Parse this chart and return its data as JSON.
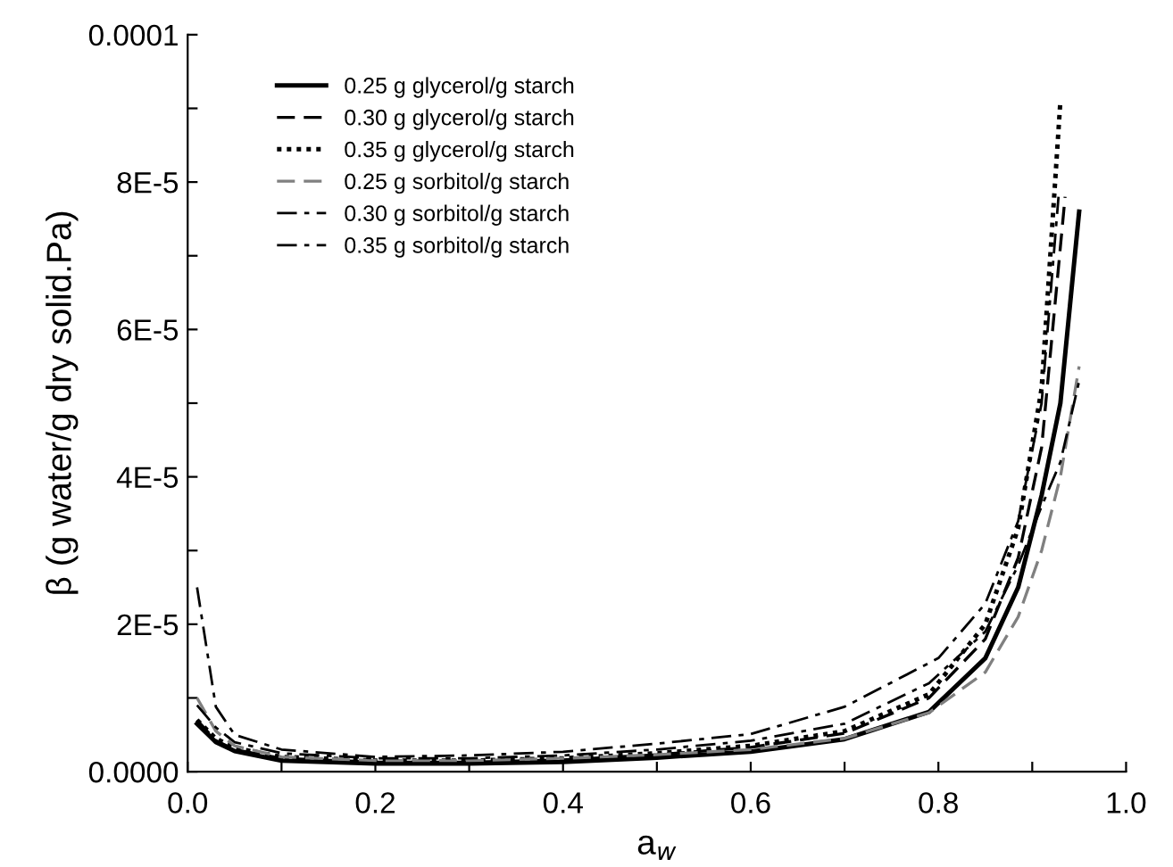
{
  "chart_data": {
    "type": "line",
    "xlabel": "a$_{w}$",
    "ylabel": "β (g water/g dry solid.Pa)",
    "xlim": [
      0,
      1
    ],
    "ylim": [
      0,
      0.0001
    ],
    "xticks": [
      {
        "value": 0,
        "label": "0.0"
      },
      {
        "value": 0.1,
        "label": null
      },
      {
        "value": 0.2,
        "label": "0.2"
      },
      {
        "value": 0.3,
        "label": null
      },
      {
        "value": 0.4,
        "label": "0.4"
      },
      {
        "value": 0.5,
        "label": null
      },
      {
        "value": 0.6,
        "label": "0.6"
      },
      {
        "value": 0.7,
        "label": null
      },
      {
        "value": 0.8,
        "label": "0.8"
      },
      {
        "value": 0.9,
        "label": null
      },
      {
        "value": 1.0,
        "label": "1.0"
      }
    ],
    "yticks": [
      {
        "value": 0,
        "label": "0.0000"
      },
      {
        "value": 1e-05,
        "label": null
      },
      {
        "value": 2e-05,
        "label": "2E-5"
      },
      {
        "value": 3e-05,
        "label": null
      },
      {
        "value": 4e-05,
        "label": "4E-5"
      },
      {
        "value": 5e-05,
        "label": null
      },
      {
        "value": 6e-05,
        "label": "6E-5"
      },
      {
        "value": 7e-05,
        "label": null
      },
      {
        "value": 8e-05,
        "label": "8E-5"
      },
      {
        "value": 9e-05,
        "label": null
      },
      {
        "value": 0.0001,
        "label": "0.0001"
      }
    ],
    "grid": false,
    "legend": "top left",
    "marker": "none",
    "series": [
      {
        "name": "0.25 g glycerol/g starch",
        "color": "#000000",
        "line_style": "solid",
        "x": [
          0.01,
          0.03,
          0.05,
          0.1,
          0.2,
          0.3,
          0.4,
          0.5,
          0.6,
          0.7,
          0.79,
          0.85,
          0.885,
          0.91,
          0.93,
          0.95
        ],
        "values": [
          6.5e-06,
          4e-06,
          2.8e-06,
          1.5e-06,
          1.1e-06,
          1.1e-06,
          1.3e-06,
          1.9e-06,
          2.7e-06,
          4.4e-06,
          8.1e-06,
          1.54e-05,
          2.5e-05,
          3.75e-05,
          5e-05,
          7.6e-05
        ]
      },
      {
        "name": "0.30 g glycerol/g starch",
        "color": "#000000",
        "line_style": "dashed",
        "x": [
          0.01,
          0.03,
          0.05,
          0.1,
          0.2,
          0.3,
          0.4,
          0.5,
          0.6,
          0.7,
          0.79,
          0.85,
          0.885,
          0.91,
          0.935
        ],
        "values": [
          7e-06,
          4.2e-06,
          3e-06,
          1.8e-06,
          1.3e-06,
          1.3e-06,
          1.6e-06,
          2.3e-06,
          3.3e-06,
          5.2e-06,
          1e-05,
          1.8e-05,
          2.9e-05,
          4.4e-05,
          7.8e-05
        ]
      },
      {
        "name": "0.35 g glycerol/g starch",
        "color": "#000000",
        "line_style": "dotted",
        "x": [
          0.01,
          0.03,
          0.05,
          0.1,
          0.2,
          0.3,
          0.4,
          0.5,
          0.6,
          0.7,
          0.79,
          0.85,
          0.885,
          0.91,
          0.93
        ],
        "values": [
          7e-06,
          4.5e-06,
          3.2e-06,
          2e-06,
          1.5e-06,
          1.5e-06,
          1.8e-06,
          2.5e-06,
          3.5e-06,
          5.5e-06,
          1.05e-05,
          2e-05,
          3.3e-05,
          5.2e-05,
          9.1e-05
        ]
      },
      {
        "name": "0.25 g sorbitol/g starch",
        "color": "#808080",
        "line_style": "dashed",
        "x": [
          0.01,
          0.03,
          0.05,
          0.1,
          0.2,
          0.3,
          0.4,
          0.5,
          0.6,
          0.7,
          0.79,
          0.85,
          0.885,
          0.91,
          0.93,
          0.95
        ],
        "values": [
          1e-05,
          5.5e-06,
          3.5e-06,
          2e-06,
          1.5e-06,
          1.5e-06,
          1.8e-06,
          2.3e-06,
          3e-06,
          4.5e-06,
          8e-06,
          1.35e-05,
          2.1e-05,
          3e-05,
          4e-05,
          5.5e-05
        ]
      },
      {
        "name": "0.30 g sorbitol/g starch",
        "color": "#000000",
        "line_style": "dashdot",
        "x": [
          0.01,
          0.03,
          0.05,
          0.1,
          0.2,
          0.3,
          0.4,
          0.5,
          0.6,
          0.7,
          0.79,
          0.85,
          0.885,
          0.91,
          0.93,
          0.95
        ],
        "values": [
          9e-06,
          6e-06,
          4e-06,
          2.5e-06,
          1.8e-06,
          1.8e-06,
          2.2e-06,
          3e-06,
          4.2e-06,
          6.5e-06,
          1.2e-05,
          1.9e-05,
          2.8e-05,
          3.6e-05,
          4.2e-05,
          5.3e-05
        ]
      },
      {
        "name": "0.35 g sorbitol/g starch",
        "color": "#000000",
        "line_style": "dashdot",
        "x": [
          0.01,
          0.03,
          0.05,
          0.1,
          0.2,
          0.3,
          0.4,
          0.5,
          0.6,
          0.7,
          0.8,
          0.85,
          0.885,
          0.91,
          0.928
        ],
        "values": [
          2.5e-05,
          8.8e-06,
          5e-06,
          3e-06,
          2e-06,
          2.2e-06,
          2.7e-06,
          3.8e-06,
          5.1e-06,
          8.8e-06,
          1.54e-05,
          2.28e-05,
          3.4e-05,
          5e-05,
          7.8e-05
        ]
      }
    ]
  }
}
